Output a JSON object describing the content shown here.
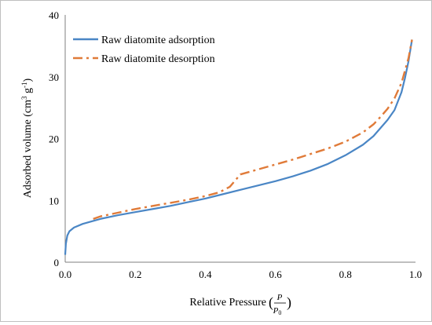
{
  "chart_data": {
    "type": "line",
    "title": "",
    "xlabel": "Relative Pressure",
    "xlabel_frac_num": "P",
    "xlabel_frac_den_base": "P",
    "xlabel_frac_den_sub": "0",
    "ylabel_base": "Adsorbed volume (cm",
    "ylabel_sup1": "3",
    "ylabel_mid": " g",
    "ylabel_sup2": "-1",
    "ylabel_end": ")",
    "xlim": [
      0.0,
      1.0
    ],
    "ylim": [
      0,
      40
    ],
    "xticks": [
      "0.0",
      "0.2",
      "0.4",
      "0.6",
      "0.8",
      "1.0"
    ],
    "yticks": [
      "0",
      "10",
      "20",
      "30",
      "40"
    ],
    "grid": false,
    "legend_position": "top-left",
    "series": [
      {
        "name": "Raw diatomite adsorption",
        "color": "#4a86c5",
        "dash": "solid",
        "points": [
          [
            0.0,
            1.2
          ],
          [
            0.002,
            3.0
          ],
          [
            0.006,
            4.3
          ],
          [
            0.012,
            5.0
          ],
          [
            0.025,
            5.6
          ],
          [
            0.05,
            6.2
          ],
          [
            0.1,
            7.0
          ],
          [
            0.15,
            7.6
          ],
          [
            0.2,
            8.1
          ],
          [
            0.25,
            8.6
          ],
          [
            0.3,
            9.1
          ],
          [
            0.35,
            9.7
          ],
          [
            0.4,
            10.3
          ],
          [
            0.45,
            11.0
          ],
          [
            0.5,
            11.7
          ],
          [
            0.55,
            12.4
          ],
          [
            0.6,
            13.1
          ],
          [
            0.65,
            13.9
          ],
          [
            0.7,
            14.8
          ],
          [
            0.75,
            15.9
          ],
          [
            0.8,
            17.3
          ],
          [
            0.85,
            19.0
          ],
          [
            0.88,
            20.4
          ],
          [
            0.9,
            21.7
          ],
          [
            0.92,
            23.0
          ],
          [
            0.94,
            24.6
          ],
          [
            0.96,
            27.5
          ],
          [
            0.97,
            29.8
          ],
          [
            0.98,
            32.5
          ],
          [
            0.99,
            36.0
          ]
        ]
      },
      {
        "name": "Raw diatomite desorption",
        "color": "#e07b39",
        "dash": "dashdot",
        "points": [
          [
            0.08,
            7.0
          ],
          [
            0.1,
            7.4
          ],
          [
            0.15,
            8.0
          ],
          [
            0.2,
            8.6
          ],
          [
            0.25,
            9.1
          ],
          [
            0.3,
            9.6
          ],
          [
            0.35,
            10.1
          ],
          [
            0.4,
            10.7
          ],
          [
            0.44,
            11.3
          ],
          [
            0.47,
            12.2
          ],
          [
            0.5,
            14.2
          ],
          [
            0.55,
            15.0
          ],
          [
            0.6,
            15.8
          ],
          [
            0.65,
            16.6
          ],
          [
            0.7,
            17.5
          ],
          [
            0.75,
            18.4
          ],
          [
            0.8,
            19.5
          ],
          [
            0.85,
            21.0
          ],
          [
            0.88,
            22.3
          ],
          [
            0.9,
            23.5
          ],
          [
            0.92,
            24.8
          ],
          [
            0.94,
            26.5
          ],
          [
            0.96,
            29.0
          ],
          [
            0.98,
            33.0
          ],
          [
            0.99,
            36.0
          ]
        ]
      }
    ]
  }
}
